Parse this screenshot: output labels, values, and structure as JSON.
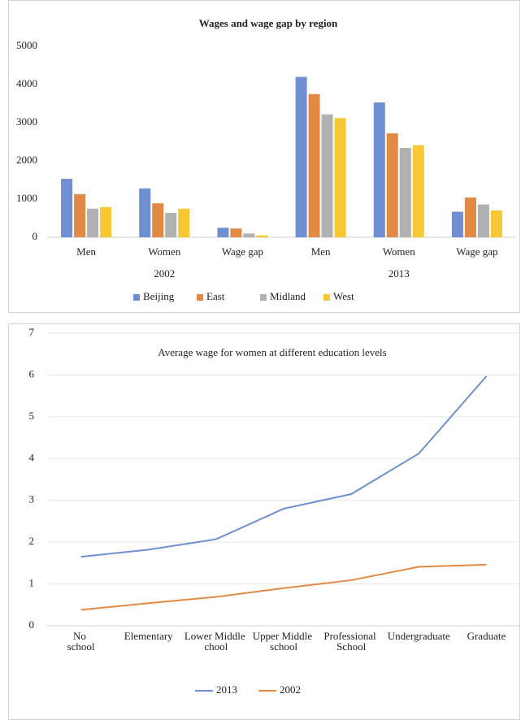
{
  "chart_data": [
    {
      "type": "bar",
      "title": "Wages and wage gap by region",
      "category_groups": [
        {
          "label": "2002",
          "categories": [
            "Men",
            "Women",
            "Wage gap"
          ]
        },
        {
          "label": "2013",
          "categories": [
            "Men",
            "Women",
            "Wage gap"
          ]
        }
      ],
      "series": [
        {
          "name": "Beijing",
          "color": "#6f8fd0",
          "values": [
            1530,
            1280,
            250,
            4200,
            3530,
            670
          ]
        },
        {
          "name": "East",
          "color": "#e08a45",
          "values": [
            1130,
            890,
            230,
            3750,
            2720,
            1040
          ]
        },
        {
          "name": "Midland",
          "color": "#b1b1b1",
          "values": [
            750,
            640,
            100,
            3220,
            2340,
            860
          ]
        },
        {
          "name": "West",
          "color": "#f5c834",
          "values": [
            790,
            750,
            50,
            3120,
            2410,
            700
          ]
        }
      ],
      "ylim": [
        0,
        5000
      ],
      "yticks": [
        0,
        1000,
        2000,
        3000,
        4000,
        5000
      ],
      "grid": false,
      "legend": "bottom"
    },
    {
      "type": "line",
      "title": "Average wage for women at different education levels",
      "categories": [
        "No school",
        "Elementary",
        "Lower Middle chool",
        "Upper Middle school",
        "Professional School",
        "Undergraduate",
        "Graduate"
      ],
      "series": [
        {
          "name": "2013",
          "color": "#6f8fd0",
          "values": [
            1.65,
            1.82,
            2.07,
            2.8,
            3.15,
            4.12,
            5.97
          ]
        },
        {
          "name": "2002",
          "color": "#e08a45",
          "values": [
            0.38,
            0.54,
            0.69,
            0.9,
            1.09,
            1.41,
            1.46
          ]
        }
      ],
      "ylim": [
        0,
        7
      ],
      "yticks": [
        0,
        1,
        2,
        3,
        4,
        5,
        6,
        7
      ],
      "grid": true,
      "legend": "bottom"
    }
  ]
}
